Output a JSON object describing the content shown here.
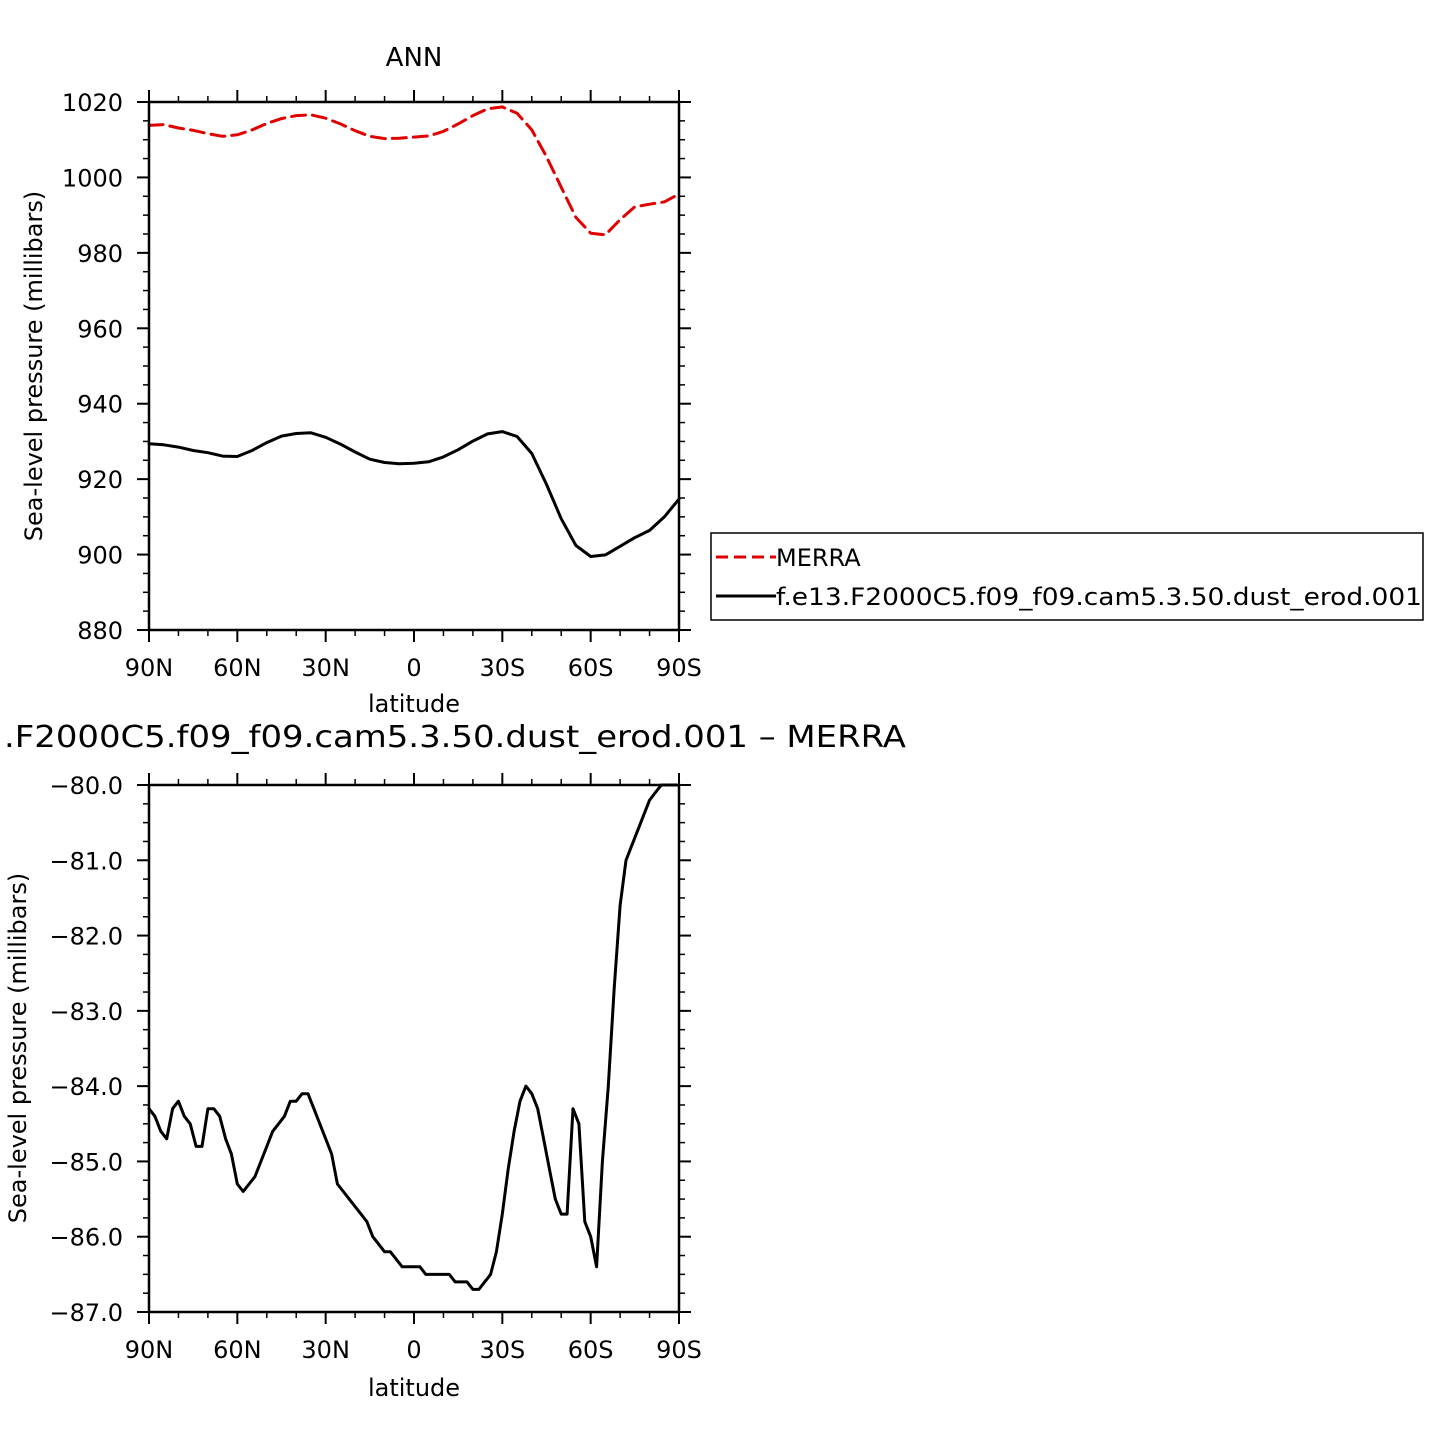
{
  "chart_data": [
    {
      "type": "line",
      "title": "ANN",
      "xlabel": "latitude",
      "ylabel": "Sea-level pressure (millibars)",
      "xlim": [
        90,
        -90
      ],
      "ylim": [
        880,
        1020
      ],
      "x_tick_values": [
        90,
        60,
        30,
        0,
        -30,
        -60,
        -90
      ],
      "x_tick_labels": [
        "90N",
        "60N",
        "30N",
        "0",
        "30S",
        "60S",
        "90S"
      ],
      "y_tick_values": [
        1020,
        1000,
        980,
        960,
        940,
        920,
        900,
        880
      ],
      "y_tick_labels": [
        "1020",
        "1000",
        "980",
        "960",
        "940",
        "920",
        "900",
        "880"
      ],
      "legend_position": "right",
      "series": [
        {
          "name": "MERRA",
          "color": "#e00000",
          "style": "dashed",
          "x": [
            90,
            85,
            80,
            75,
            70,
            65,
            60,
            55,
            50,
            45,
            40,
            35,
            30,
            25,
            20,
            15,
            10,
            5,
            0,
            -5,
            -10,
            -15,
            -20,
            -25,
            -30,
            -35,
            -40,
            -45,
            -50,
            -55,
            -60,
            -65,
            -70,
            -75,
            -80,
            -85,
            -90
          ],
          "y": [
            1013.8,
            1014.0,
            1013.1,
            1012.5,
            1011.6,
            1010.9,
            1011.3,
            1012.6,
            1014.3,
            1015.6,
            1016.4,
            1016.6,
            1015.7,
            1014.2,
            1012.4,
            1010.9,
            1010.3,
            1010.4,
            1010.7,
            1011.0,
            1012.2,
            1014.2,
            1016.4,
            1018.2,
            1018.7,
            1017.0,
            1012.6,
            1005.5,
            997.4,
            989.4,
            985.2,
            984.8,
            988.8,
            992.2,
            992.9,
            993.5,
            995.6
          ]
        },
        {
          "name": "f.e13.F2000C5.f09_f09.cam5.3.50.dust_erod.001",
          "color": "#000000",
          "style": "solid",
          "x": [
            90,
            85,
            80,
            75,
            70,
            65,
            60,
            55,
            50,
            45,
            40,
            35,
            30,
            25,
            20,
            15,
            10,
            5,
            0,
            -5,
            -10,
            -15,
            -20,
            -25,
            -30,
            -35,
            -40,
            -45,
            -50,
            -55,
            -60,
            -65,
            -70,
            -75,
            -80,
            -85,
            -90
          ],
          "y": [
            929.4,
            929.1,
            928.5,
            927.6,
            927.0,
            926.1,
            926.0,
            927.6,
            929.7,
            931.4,
            932.1,
            932.3,
            931.1,
            929.3,
            927.2,
            925.3,
            924.4,
            924.1,
            924.2,
            924.6,
            925.9,
            927.8,
            930.1,
            932.0,
            932.6,
            931.3,
            926.8,
            918.6,
            909.5,
            902.4,
            899.5,
            899.9,
            902.2,
            904.5,
            906.4,
            910.0,
            914.7
          ]
        }
      ]
    },
    {
      "type": "line",
      "title": ".F2000C5.f09_f09.cam5.3.50.dust_erod.001 – MERRA",
      "xlabel": "latitude",
      "ylabel": "Sea-level pressure (millibars)",
      "xlim": [
        90,
        -90
      ],
      "ylim": [
        -87.0,
        -80.0
      ],
      "x_tick_values": [
        90,
        60,
        30,
        0,
        -30,
        -60,
        -90
      ],
      "x_tick_labels": [
        "90N",
        "60N",
        "30N",
        "0",
        "30S",
        "60S",
        "90S"
      ],
      "y_tick_values": [
        -80.0,
        -81.0,
        -82.0,
        -83.0,
        -84.0,
        -85.0,
        -86.0,
        -87.0
      ],
      "y_tick_labels": [
        "−80.0",
        "−81.0",
        "−82.0",
        "−83.0",
        "−84.0",
        "−85.0",
        "−86.0",
        "−87.0"
      ],
      "series": [
        {
          "color": "#000000",
          "style": "solid",
          "x": [
            90,
            88,
            86,
            84,
            82,
            80,
            78,
            76,
            74,
            72,
            70,
            68,
            66,
            64,
            62,
            60,
            58,
            56,
            54,
            52,
            50,
            48,
            46,
            44,
            42,
            40,
            38,
            36,
            35,
            34,
            32,
            30,
            28,
            26,
            24,
            22,
            20,
            18,
            16,
            14,
            12,
            10,
            8,
            6,
            4,
            2,
            0,
            -2,
            -4,
            -6,
            -8,
            -10,
            -12,
            -14,
            -16,
            -18,
            -20,
            -22,
            -24,
            -26,
            -28,
            -30,
            -32,
            -34,
            -36,
            -38,
            -40,
            -42,
            -44,
            -46,
            -48,
            -50,
            -52,
            -54,
            -56,
            -58,
            -60,
            -62,
            -64,
            -66,
            -68,
            -70,
            -72,
            -74,
            -76,
            -78,
            -80,
            -82,
            -84,
            -86,
            -88,
            -90
          ],
          "y": [
            -84.3,
            -84.4,
            -84.6,
            -84.7,
            -84.3,
            -84.2,
            -84.4,
            -84.5,
            -84.8,
            -84.8,
            -84.3,
            -84.3,
            -84.4,
            -84.7,
            -84.9,
            -85.3,
            -85.4,
            -85.3,
            -85.2,
            -85.0,
            -84.8,
            -84.6,
            -84.5,
            -84.4,
            -84.2,
            -84.2,
            -84.1,
            -84.1,
            -84.2,
            -84.3,
            -84.5,
            -84.7,
            -84.9,
            -85.3,
            -85.4,
            -85.5,
            -85.6,
            -85.7,
            -85.8,
            -86.0,
            -86.1,
            -86.2,
            -86.2,
            -86.3,
            -86.4,
            -86.4,
            -86.4,
            -86.4,
            -86.5,
            -86.5,
            -86.5,
            -86.5,
            -86.5,
            -86.6,
            -86.6,
            -86.6,
            -86.7,
            -86.7,
            -86.6,
            -86.5,
            -86.2,
            -85.7,
            -85.1,
            -84.6,
            -84.2,
            -84.0,
            -84.1,
            -84.3,
            -84.7,
            -85.1,
            -85.5,
            -85.7,
            -85.7,
            -84.3,
            -84.5,
            -85.8,
            -86.0,
            -86.4,
            -85.0,
            -84.0,
            -82.7,
            -81.6,
            -81.0,
            -80.8,
            -80.6,
            -80.4,
            -80.2,
            -80.1,
            -80.0,
            -80.0,
            -79.9,
            -79.8
          ]
        }
      ]
    }
  ]
}
